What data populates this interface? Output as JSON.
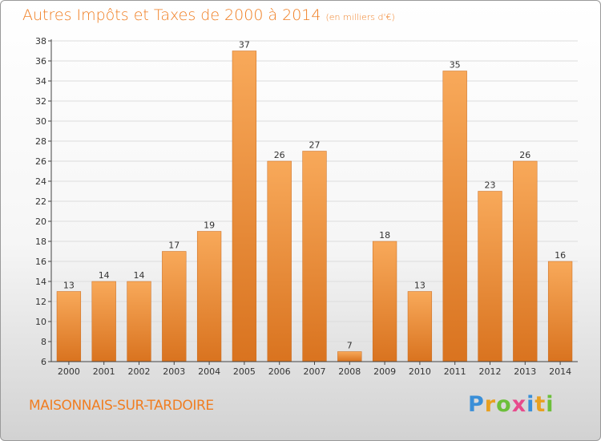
{
  "title": "Autres Impôts et Taxes de 2000 à 2014",
  "title_unit": "(en milliers d'€)",
  "commune": "MAISONNAIS-SUR-TARDOIRE",
  "logo": {
    "text": "Proxiti",
    "letters": [
      {
        "ch": "P",
        "color": "#3a8fd8"
      },
      {
        "ch": "r",
        "color": "#e8a020"
      },
      {
        "ch": "o",
        "color": "#6cbf3a"
      },
      {
        "ch": "x",
        "color": "#e84a8c"
      },
      {
        "ch": "i",
        "color": "#3a8fd8"
      },
      {
        "ch": "t",
        "color": "#e8a020"
      },
      {
        "ch": "i",
        "color": "#6cbf3a"
      }
    ]
  },
  "colors": {
    "accent": "#f07e22",
    "bar_top": "#f8a95a",
    "bar_bottom": "#d9731f",
    "grid": "#dcdcdc"
  },
  "chart_data": {
    "type": "bar",
    "title": "Autres Impôts et Taxes de 2000 à 2014",
    "subtitle": "(en milliers d'€)",
    "categories": [
      "2000",
      "2001",
      "2002",
      "2003",
      "2004",
      "2005",
      "2006",
      "2007",
      "2008",
      "2009",
      "2010",
      "2011",
      "2012",
      "2013",
      "2014"
    ],
    "values": [
      13,
      14,
      14,
      17,
      19,
      37,
      26,
      27,
      7,
      18,
      13,
      35,
      23,
      26,
      16
    ],
    "ylim": [
      6,
      38
    ],
    "yticks": [
      6,
      8,
      10,
      12,
      14,
      16,
      18,
      20,
      22,
      24,
      26,
      28,
      30,
      32,
      34,
      36,
      38
    ],
    "grid": true,
    "data_labels": true
  }
}
